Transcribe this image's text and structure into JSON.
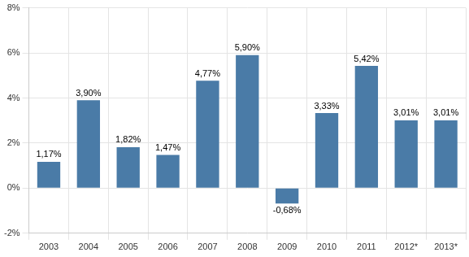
{
  "chart_data": {
    "type": "bar",
    "categories": [
      "2003",
      "2004",
      "2005",
      "2006",
      "2007",
      "2008",
      "2009",
      "2010",
      "2011",
      "2012*",
      "2013*"
    ],
    "values": [
      1.17,
      3.9,
      1.82,
      1.47,
      4.77,
      5.9,
      -0.68,
      3.33,
      5.42,
      3.01,
      3.01
    ],
    "value_labels": [
      "1,17%",
      "3,90%",
      "1,82%",
      "1,47%",
      "4,77%",
      "5,90%",
      "-0,68%",
      "3,33%",
      "5,42%",
      "3,01%",
      "3,01%"
    ],
    "color": "#4a7ba7",
    "ylim": [
      -2,
      8
    ],
    "yticks": [
      {
        "value": -2,
        "label": "-2%"
      },
      {
        "value": 0,
        "label": "0%"
      },
      {
        "value": 2,
        "label": "2%"
      },
      {
        "value": 4,
        "label": "4%"
      },
      {
        "value": 6,
        "label": "6%"
      },
      {
        "value": 8,
        "label": "8%"
      }
    ],
    "grid": true,
    "data_labels": true
  }
}
